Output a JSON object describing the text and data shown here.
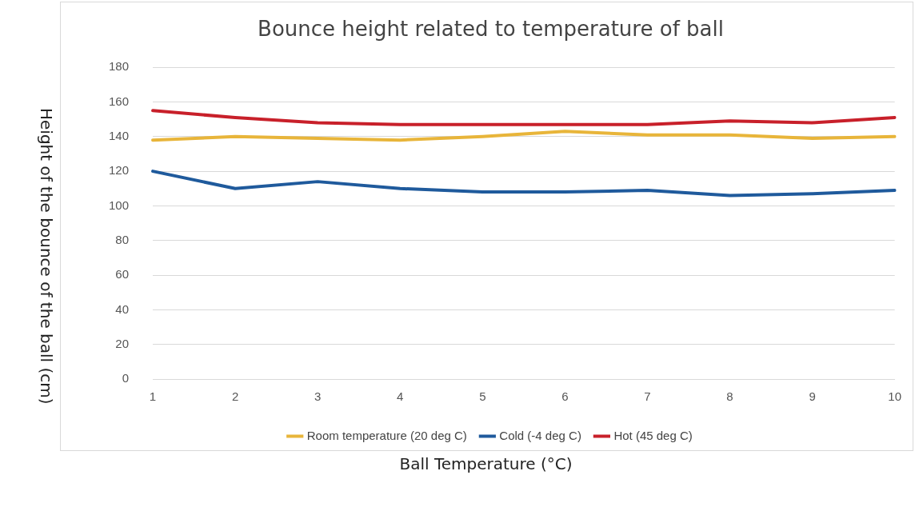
{
  "chart_data": {
    "type": "line",
    "title": "Bounce height related to temperature of ball",
    "xlabel": "Ball Temperature (°C)",
    "ylabel": "Height of the bounce of the ball (cm)",
    "categories": [
      "1",
      "2",
      "3",
      "4",
      "5",
      "6",
      "7",
      "8",
      "9",
      "10"
    ],
    "series": [
      {
        "name": "Room temperature (20 deg C)",
        "color": "#e8b53a",
        "values": [
          138,
          140,
          139,
          138,
          140,
          143,
          141,
          141,
          139,
          140
        ]
      },
      {
        "name": "Cold (-4 deg C)",
        "color": "#1f5a9c",
        "values": [
          120,
          110,
          114,
          110,
          108,
          108,
          109,
          106,
          107,
          109
        ]
      },
      {
        "name": "Hot (45 deg C)",
        "color": "#c8202a",
        "values": [
          155,
          151,
          148,
          147,
          147,
          147,
          147,
          149,
          148,
          151
        ]
      }
    ],
    "ylim": [
      0,
      180
    ],
    "yticks": [
      0,
      20,
      40,
      60,
      80,
      100,
      120,
      140,
      160,
      180
    ],
    "grid": "y",
    "legend": "bottom",
    "marker": "none",
    "line_style": "solid"
  }
}
